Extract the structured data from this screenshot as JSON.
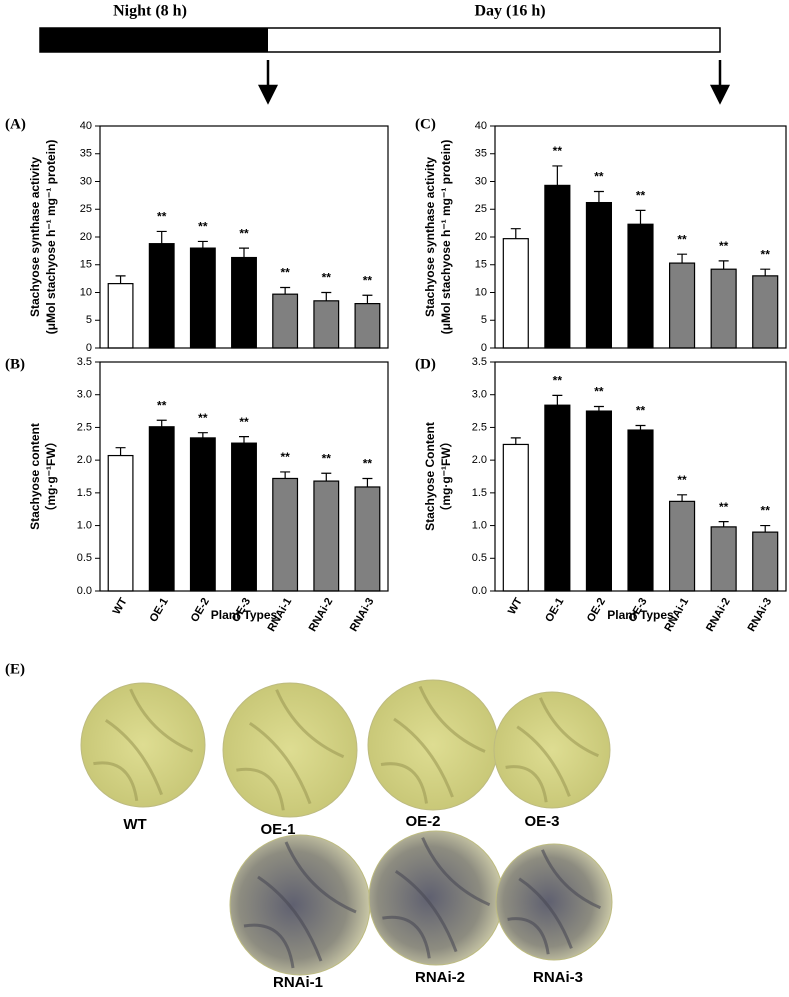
{
  "timeline": {
    "night": "Night (8 h)",
    "day": "Day (16 h)"
  },
  "chart_data": [
    {
      "type": "bar",
      "panel": "(A)",
      "ylabel": [
        "Stachyose synthase activity",
        "(μMol stachyose h⁻¹ mg⁻¹ protein)"
      ],
      "values": [
        11.6,
        18.8,
        18.0,
        16.3,
        9.7,
        8.5,
        8.0
      ],
      "errors": [
        1.4,
        2.2,
        1.2,
        1.7,
        1.2,
        1.5,
        1.5
      ],
      "significance": [
        null,
        "**",
        "**",
        "**",
        "**",
        "**",
        "**"
      ],
      "colors": [
        "#ffffff",
        "#000000",
        "#000000",
        "#000000",
        "#808080",
        "#808080",
        "#808080"
      ],
      "ylim": [
        0,
        40
      ],
      "yticks": [
        0,
        5,
        10,
        15,
        20,
        25,
        30,
        35,
        40
      ]
    },
    {
      "type": "bar",
      "panel": "(B)",
      "ylabel": [
        "Stachyose content",
        "（mg·g⁻¹FW）"
      ],
      "xlabel": "Plant Types",
      "categories": [
        "WT",
        "OE-1",
        "OE-2",
        "OE-3",
        "RNAi-1",
        "RNAi-2",
        "RNAi-3"
      ],
      "values": [
        2.07,
        2.51,
        2.34,
        2.26,
        1.72,
        1.68,
        1.59
      ],
      "errors": [
        0.12,
        0.1,
        0.08,
        0.1,
        0.1,
        0.12,
        0.13
      ],
      "significance": [
        null,
        "**",
        "**",
        "**",
        "**",
        "**",
        "**"
      ],
      "colors": [
        "#ffffff",
        "#000000",
        "#000000",
        "#000000",
        "#808080",
        "#808080",
        "#808080"
      ],
      "ylim": [
        0,
        3.5
      ],
      "yticks": [
        {
          "value": 0,
          "label": "0.0"
        },
        0.5,
        {
          "value": 1,
          "label": "1.0"
        },
        1.5,
        {
          "value": 2,
          "label": "2.0"
        },
        2.5,
        {
          "value": 3,
          "label": "3.0"
        },
        3.5
      ]
    },
    {
      "type": "bar",
      "panel": "(C)",
      "ylabel": [
        "Stachyose synthase activity",
        "(μMol stachyose h⁻¹ mg⁻¹ protein)"
      ],
      "values": [
        19.7,
        29.3,
        26.2,
        22.3,
        15.3,
        14.2,
        13.0
      ],
      "errors": [
        1.8,
        3.5,
        2.0,
        2.5,
        1.6,
        1.5,
        1.2
      ],
      "significance": [
        null,
        "**",
        "**",
        "**",
        "**",
        "**",
        "**"
      ],
      "colors": [
        "#ffffff",
        "#000000",
        "#000000",
        "#000000",
        "#808080",
        "#808080",
        "#808080"
      ],
      "ylim": [
        0,
        40
      ],
      "yticks": [
        0,
        5,
        10,
        15,
        20,
        25,
        30,
        35,
        40
      ]
    },
    {
      "type": "bar",
      "panel": "(D)",
      "ylabel": [
        "Stachyose Content",
        "（mg·g⁻¹FW）"
      ],
      "xlabel": "Plant Types",
      "categories": [
        "WT",
        "OE-1",
        "OE-2",
        "OE-3",
        "RNAi-1",
        "RNAi-2",
        "RNAi-3"
      ],
      "values": [
        2.24,
        2.84,
        2.75,
        2.46,
        1.37,
        0.98,
        0.9
      ],
      "errors": [
        0.1,
        0.15,
        0.07,
        0.07,
        0.1,
        0.08,
        0.1
      ],
      "significance": [
        null,
        "**",
        "**",
        "**",
        "**",
        "**",
        "**"
      ],
      "colors": [
        "#ffffff",
        "#000000",
        "#000000",
        "#000000",
        "#808080",
        "#808080",
        "#808080"
      ],
      "ylim": [
        0,
        3.5
      ],
      "yticks": [
        {
          "value": 0,
          "label": "0.0"
        },
        0.5,
        {
          "value": 1,
          "label": "1.0"
        },
        1.5,
        {
          "value": 2,
          "label": "2.0"
        },
        2.5,
        {
          "value": 3,
          "label": "3.0"
        },
        3.5
      ]
    }
  ],
  "panel_e": {
    "label": "(E)",
    "leaves": [
      "WT",
      "OE-1",
      "OE-2",
      "OE-3",
      "RNAi-1",
      "RNAi-2",
      "RNAi-3"
    ]
  }
}
